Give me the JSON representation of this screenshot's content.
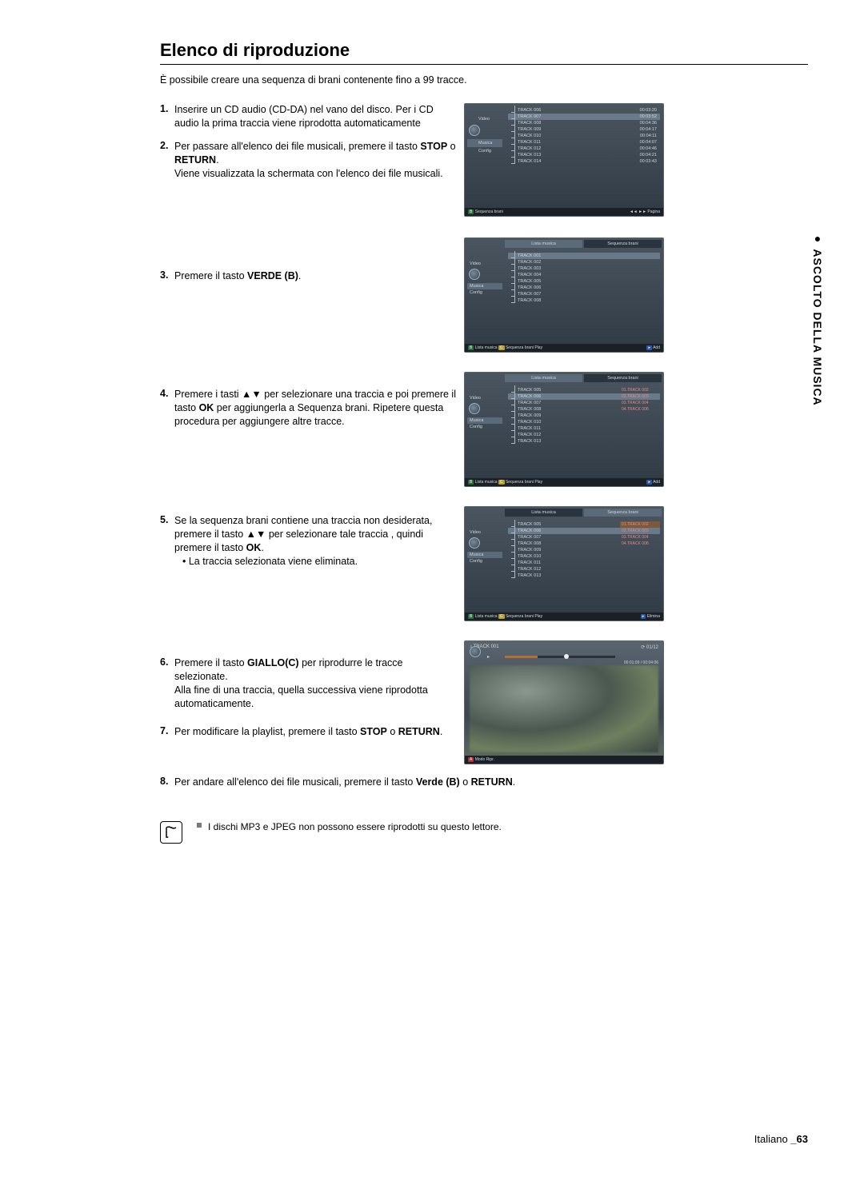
{
  "pageTitle": "Elenco di riproduzione",
  "intro": "È possibile creare una sequenza di brani contenente fino a 99 tracce.",
  "sideTab": {
    "dark": "● ASCOLTO DELLA MUSICA",
    "light": ""
  },
  "steps": {
    "s1": "Inserire un CD audio (CD-DA) nel vano del disco. Per i CD audio la prima traccia viene riprodotta automaticamente",
    "s2a": "Per passare all'elenco dei file musicali, premere il tasto ",
    "s2b": "STOP",
    "s2c": " o ",
    "s2d": "RETURN",
    "s2e": ".",
    "s2f": "Viene visualizzata la schermata con l'elenco dei file musicali.",
    "s3a": "Premere il tasto ",
    "s3b": "VERDE (B)",
    "s3c": ".",
    "s4a": "Premere i tasti ▲▼ per selezionare una traccia e poi premere il tasto ",
    "s4b": "OK",
    "s4c": " per aggiungerla a Sequenza brani. Ripetere questa procedura per aggiungere altre tracce.",
    "s5a": "Se la sequenza brani contiene una traccia non desiderata, premere il tasto ▲▼ per selezionare tale traccia , quindi premere il tasto ",
    "s5b": "OK",
    "s5c": ".",
    "s5bullet": "La traccia selezionata viene eliminata.",
    "s6a": "Premere il tasto ",
    "s6b": "GIALLO(C)",
    "s6c": " per riprodurre le tracce selezionate.",
    "s6d": "Alla fine di una traccia, quella successiva viene riprodotta automaticamente.",
    "s7a": "Per modificare la playlist, premere il tasto ",
    "s7b": "STOP",
    "s7c": " o ",
    "s7d": "RETURN",
    "s7e": ".",
    "s8a": "Per andare all'elenco dei file musicali, premere il tasto ",
    "s8b": "Verde (B)",
    "s8c": " o ",
    "s8d": "RETURN",
    "s8e": "."
  },
  "note": "I dischi MP3 e JPEG non possono essere riprodotti su questo lettore.",
  "footer": {
    "lang": "Italiano ",
    "page": "_63"
  },
  "screens": {
    "sideItems": {
      "video": "Video",
      "musica": "Musica",
      "config": "Config"
    },
    "s1": {
      "rows": [
        {
          "t": "TRACK 006",
          "r": "00:03:20"
        },
        {
          "t": "TRACK 007",
          "r": "00:03:52",
          "sel": true
        },
        {
          "t": "TRACK 008",
          "r": "00:04:36"
        },
        {
          "t": "TRACK 009",
          "r": "00:04:17"
        },
        {
          "t": "TRACK 010",
          "r": "00:04:11"
        },
        {
          "t": "TRACK 011",
          "r": "00:04:07"
        },
        {
          "t": "TRACK 012",
          "r": "00:04:46"
        },
        {
          "t": "TRACK 013",
          "r": "00:04:21"
        },
        {
          "t": "TRACK 014",
          "r": "00:03:43"
        }
      ],
      "footerL": "Sequenza brani",
      "footerR": "◄◄ ►► Pagina"
    },
    "s2": {
      "tabs": {
        "l": "Lista musica",
        "r": "Sequenza brani"
      },
      "rows": [
        {
          "t": "TRACK 001",
          "sel": true
        },
        {
          "t": "TRACK 002"
        },
        {
          "t": "TRACK 003"
        },
        {
          "t": "TRACK 004"
        },
        {
          "t": "TRACK 005"
        },
        {
          "t": "TRACK 006"
        },
        {
          "t": "TRACK 007"
        },
        {
          "t": "TRACK 008"
        }
      ],
      "footerL": "Lista musica",
      "footerM": "Sequenza brani Play",
      "footerR": "Add"
    },
    "s3": {
      "tabs": {
        "l": "Lista musica",
        "r": "Sequenza brani"
      },
      "rows": [
        {
          "t": "TRACK 005"
        },
        {
          "t": "TRACK 006",
          "sel": true
        },
        {
          "t": "TRACK 007"
        },
        {
          "t": "TRACK 008"
        },
        {
          "t": "TRACK 009"
        },
        {
          "t": "TRACK 010"
        },
        {
          "t": "TRACK 011"
        },
        {
          "t": "TRACK 012"
        },
        {
          "t": "TRACK 013"
        }
      ],
      "playlist": [
        {
          "t": "01.TRACK 002"
        },
        {
          "t": "02.TRACK 003"
        },
        {
          "t": "03.TRACK 004"
        },
        {
          "t": "04.TRACK 006"
        }
      ],
      "footerL": "Lista musica",
      "footerM": "Sequenza brani Play",
      "footerR": "Add"
    },
    "s4": {
      "tabs": {
        "l": "Lista musica",
        "r": "Sequenza brani"
      },
      "rows": [
        {
          "t": "TRACK 005"
        },
        {
          "t": "TRACK 006",
          "sel": true
        },
        {
          "t": "TRACK 007"
        },
        {
          "t": "TRACK 008"
        },
        {
          "t": "TRACK 009"
        },
        {
          "t": "TRACK 010"
        },
        {
          "t": "TRACK 011"
        },
        {
          "t": "TRACK 012"
        },
        {
          "t": "TRACK 013"
        }
      ],
      "playlist": [
        {
          "t": "01.TRACK 002",
          "sel": true
        },
        {
          "t": "02.TRACK 003",
          "dim": true
        },
        {
          "t": "03.TRACK 004",
          "dim": true
        },
        {
          "t": "04.TRACK 006",
          "dim": true
        }
      ],
      "footerL": "Lista musica",
      "footerM": "Sequenza brani Play",
      "footerR": "Elimina"
    },
    "player": {
      "track": "TRACK 001",
      "count": "01/12",
      "time": "00:01:09 / 00:04:06",
      "footer": "Modo Ripr."
    }
  }
}
